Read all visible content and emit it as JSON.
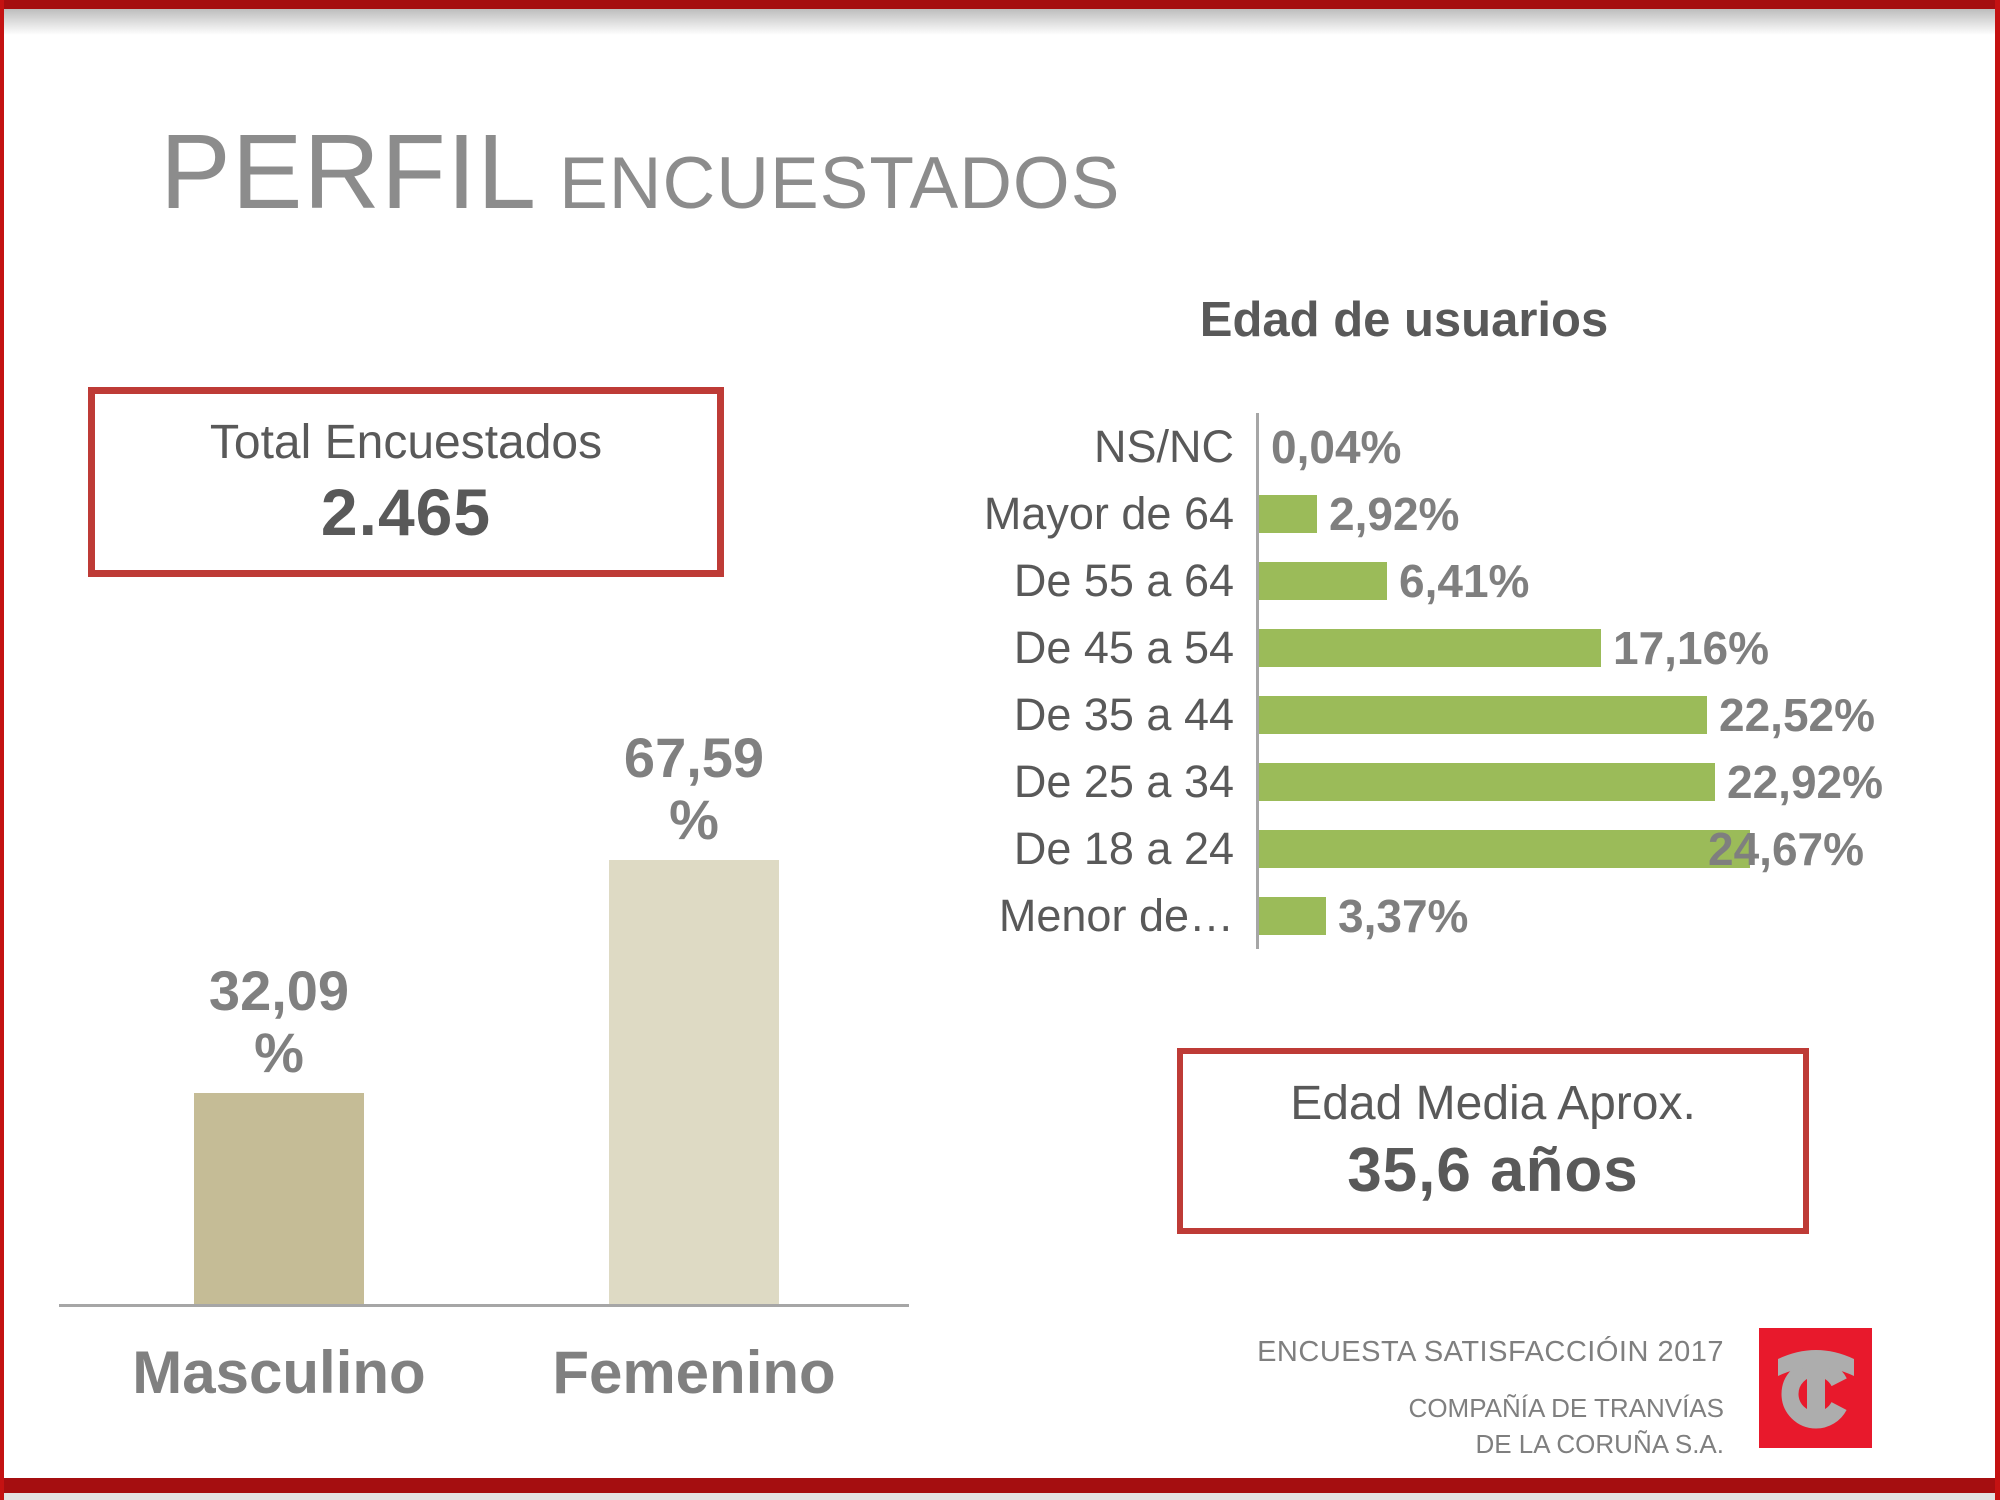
{
  "slide": {
    "title": {
      "main": "PERFIL",
      "sub": "ENCUESTADOS"
    }
  },
  "stats": {
    "total": {
      "label": "Total Encuestados",
      "value": "2.465"
    },
    "edad_media": {
      "label": "Edad Media Aprox.",
      "value": "35,6 años"
    }
  },
  "footer": {
    "line1": "ENCUESTA SATISFACCIÓIN 2017",
    "line2": "COMPAÑÍA DE TRANVÍAS",
    "line3": "DE LA CORUÑA S.A.",
    "logo": "compania-de-tranvias-tc-monogram"
  },
  "colors": {
    "frame_red": "#C41212",
    "band_red": "#A50E10",
    "box_border_red": "#BE3B36",
    "title_gray": "#8C8C8C",
    "text_gray": "#595959",
    "value_gray": "#7F7F7F",
    "label_gray": "#808080",
    "axis_gray": "#A6A6A6",
    "bar_green": "#9BBB59",
    "bar_tan": "#C5BC96",
    "bar_beige": "#DEDAC4",
    "logo_red": "#E8192C",
    "logo_gray": "#ADADAD"
  },
  "chart_data": [
    {
      "type": "bar",
      "name": "genero-encuestados",
      "orientation": "vertical",
      "title": "",
      "categories": [
        "Masculino",
        "Femenino"
      ],
      "values": [
        32.09,
        67.59
      ],
      "value_labels": [
        "32,09\n%",
        "67,59\n%"
      ],
      "bar_colors": [
        "#C5BC96",
        "#DEDAC4"
      ],
      "ylim": [
        0,
        70
      ],
      "grid": false,
      "legend": false
    },
    {
      "type": "bar",
      "name": "edad-de-usuarios",
      "orientation": "horizontal",
      "title": "Edad de usuarios",
      "categories": [
        "NS/NC",
        "Mayor de 64",
        "De 55 a 64",
        "De 45 a 54",
        "De 35 a 44",
        "De 25 a 34",
        "De 18 a 24",
        "Menor de…"
      ],
      "values": [
        0.04,
        2.92,
        6.41,
        17.16,
        22.52,
        22.92,
        24.67,
        3.37
      ],
      "value_labels": [
        "0,04%",
        "2,92%",
        "6,41%",
        "17,16%",
        "22,52%",
        "22,92%",
        "24,67%",
        "3,37%"
      ],
      "bar_color": "#9BBB59",
      "xlim": [
        0,
        25
      ],
      "grid": false,
      "legend": false
    }
  ]
}
